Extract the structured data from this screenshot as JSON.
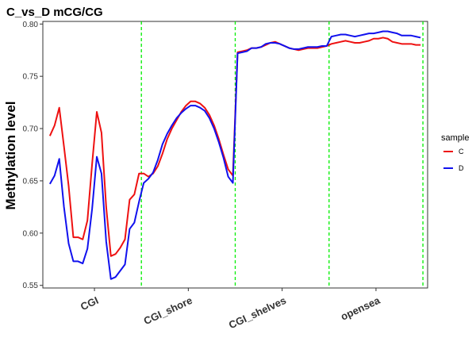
{
  "chart_data": {
    "type": "line",
    "title": "C_vs_D mCG/CG",
    "xlabel": "",
    "ylabel": "Methylation level",
    "ylim": [
      0.5475,
      0.8025
    ],
    "yticks": [
      "0.55",
      "0.60",
      "0.65",
      "0.70",
      "0.75",
      "0.80"
    ],
    "regions": [
      "CGI",
      "CGI_shore",
      "CGI_shelves",
      "opensea"
    ],
    "points_per_region": 20,
    "grid": false,
    "boundary_color": "#00ee00",
    "legend": {
      "title": "sample",
      "position": "right"
    },
    "series": [
      {
        "name": "C",
        "color": "#ee1111",
        "values": [
          0.693,
          0.703,
          0.72,
          0.683,
          0.645,
          0.596,
          0.596,
          0.594,
          0.612,
          0.666,
          0.716,
          0.696,
          0.625,
          0.578,
          0.58,
          0.586,
          0.594,
          0.632,
          0.637,
          0.657,
          0.657,
          0.654,
          0.657,
          0.664,
          0.676,
          0.69,
          0.7,
          0.708,
          0.716,
          0.722,
          0.726,
          0.726,
          0.724,
          0.72,
          0.713,
          0.703,
          0.69,
          0.675,
          0.661,
          0.655,
          0.773,
          0.774,
          0.775,
          0.777,
          0.777,
          0.778,
          0.78,
          0.782,
          0.783,
          0.781,
          0.779,
          0.777,
          0.776,
          0.775,
          0.776,
          0.777,
          0.777,
          0.777,
          0.778,
          0.779,
          0.781,
          0.782,
          0.783,
          0.784,
          0.783,
          0.782,
          0.782,
          0.783,
          0.784,
          0.786,
          0.786,
          0.787,
          0.786,
          0.783,
          0.782,
          0.781,
          0.781,
          0.781,
          0.78,
          0.78
        ]
      },
      {
        "name": "D",
        "color": "#1111ee",
        "values": [
          0.647,
          0.655,
          0.671,
          0.625,
          0.59,
          0.573,
          0.573,
          0.571,
          0.585,
          0.623,
          0.673,
          0.657,
          0.592,
          0.556,
          0.558,
          0.564,
          0.57,
          0.604,
          0.61,
          0.63,
          0.648,
          0.652,
          0.658,
          0.67,
          0.685,
          0.695,
          0.703,
          0.71,
          0.715,
          0.719,
          0.722,
          0.722,
          0.72,
          0.717,
          0.71,
          0.7,
          0.687,
          0.672,
          0.654,
          0.648,
          0.772,
          0.773,
          0.774,
          0.777,
          0.777,
          0.778,
          0.781,
          0.782,
          0.782,
          0.781,
          0.779,
          0.777,
          0.776,
          0.776,
          0.777,
          0.778,
          0.778,
          0.778,
          0.779,
          0.779,
          0.788,
          0.789,
          0.79,
          0.79,
          0.789,
          0.788,
          0.789,
          0.79,
          0.791,
          0.791,
          0.792,
          0.793,
          0.793,
          0.792,
          0.791,
          0.789,
          0.789,
          0.789,
          0.788,
          0.787
        ]
      }
    ]
  }
}
